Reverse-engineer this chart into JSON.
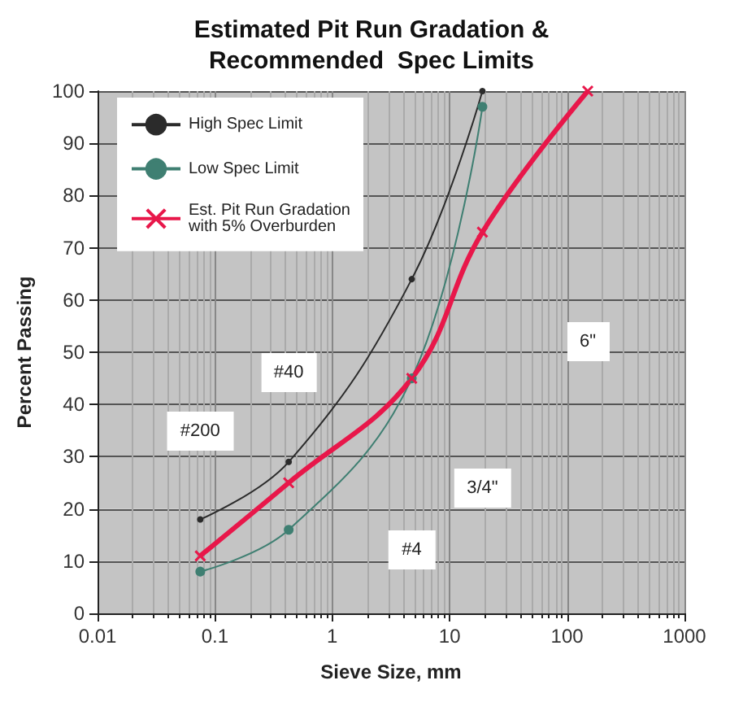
{
  "chart_data": {
    "type": "line",
    "title": "Estimated Pit Run Gradation &\nRecommended  Spec Limits",
    "xlabel": "Sieve Size, mm",
    "ylabel": "Percent Passing",
    "series": [
      {
        "name": "High Spec Limit",
        "color": "#2b2b2b",
        "marker": "circle",
        "x": [
          0.075,
          0.425,
          4.75,
          19
        ],
        "values": [
          18,
          29,
          64,
          100
        ]
      },
      {
        "name": "Low Spec Limit",
        "color": "#3f7f72",
        "marker": "circle",
        "x": [
          0.075,
          0.425,
          4.75,
          19
        ],
        "values": [
          8,
          16,
          45,
          97
        ]
      },
      {
        "name": "Est. Pit Run Gradation\nwith 5% Overburden",
        "color": "#e8174a",
        "marker": "cross",
        "x": [
          0.075,
          0.425,
          4.75,
          19,
          150
        ],
        "values": [
          11,
          25,
          45,
          73,
          100
        ]
      }
    ],
    "annotations": [
      {
        "text": "#200",
        "x": 0.075,
        "y": 35
      },
      {
        "text": "#40",
        "x": 0.425,
        "y": 46
      },
      {
        "text": "#4",
        "x": 4.75,
        "y": 12
      },
      {
        "text": "3/4\"",
        "x": 19,
        "y": 24
      },
      {
        "text": "6\"",
        "x": 150,
        "y": 52
      }
    ],
    "log": "x",
    "xlim": [
      0.01,
      1000
    ],
    "xticks": [
      {
        "value": 0.01,
        "label": "0.01"
      },
      {
        "value": 0.1,
        "label": "0.1"
      },
      1,
      10,
      100,
      1000
    ],
    "ylim": [
      0,
      100
    ],
    "yticks": [
      0,
      10,
      20,
      30,
      40,
      50,
      60,
      70,
      80,
      90,
      100
    ],
    "grid": true,
    "legend": "top left",
    "line_style": "solid"
  }
}
